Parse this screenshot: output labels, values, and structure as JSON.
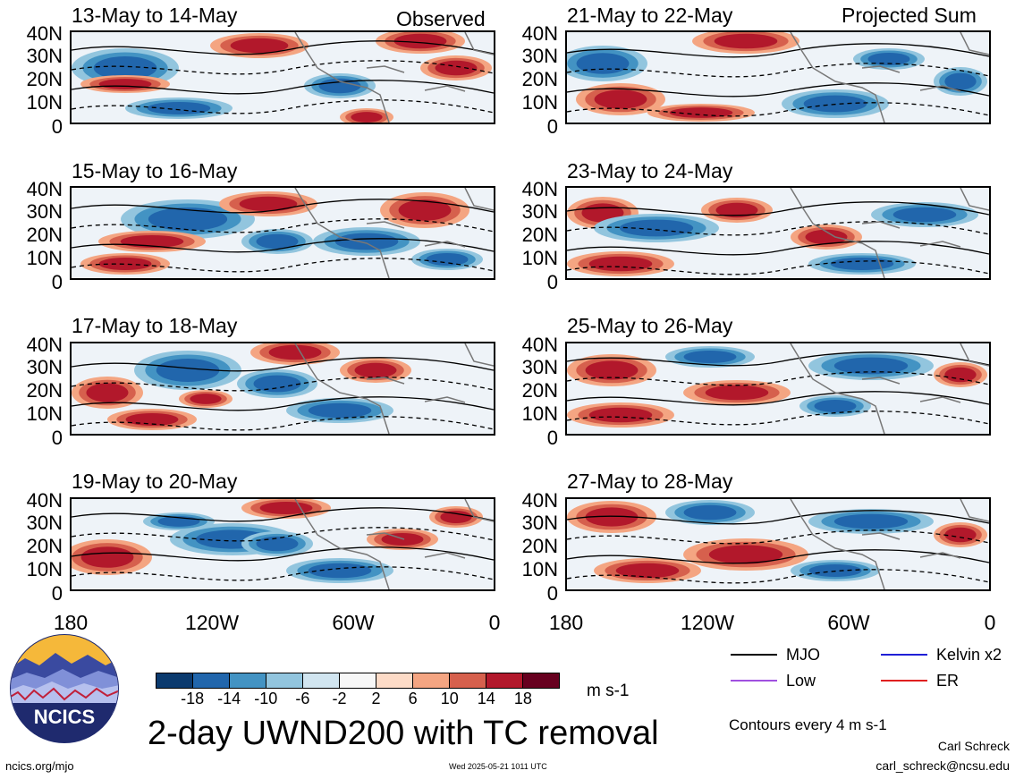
{
  "column_titles": {
    "left": "Observed",
    "right": "Projected Sum"
  },
  "panels": {
    "left": [
      {
        "title": "13-May to 14-May"
      },
      {
        "title": "15-May to 16-May"
      },
      {
        "title": "17-May to 18-May"
      },
      {
        "title": "19-May to 20-May"
      }
    ],
    "right": [
      {
        "title": "21-May to 22-May"
      },
      {
        "title": "23-May to 24-May"
      },
      {
        "title": "25-May to 26-May"
      },
      {
        "title": "27-May to 28-May"
      }
    ]
  },
  "lat_labels": [
    "40N",
    "30N",
    "20N",
    "10N",
    "0"
  ],
  "lon_labels": [
    "180",
    "120W",
    "60W",
    "0"
  ],
  "colorbar": {
    "labels": [
      "-18",
      "-14",
      "-10",
      "-6",
      "-2",
      "2",
      "6",
      "10",
      "14",
      "18"
    ],
    "colors": [
      "#0b3a6e",
      "#2166ac",
      "#4393c3",
      "#92c5de",
      "#d1e5f0",
      "#f7f7f7",
      "#fddbc7",
      "#f4a582",
      "#d6604d",
      "#b2182b",
      "#67001f"
    ],
    "units": "m s-1"
  },
  "main_title": "2-day UWND200 with TC removal",
  "legend": [
    {
      "label": "MJO",
      "color": "#000000"
    },
    {
      "label": "Kelvin x2",
      "color": "#1f1fd6"
    },
    {
      "label": "Low",
      "color": "#a050e0"
    },
    {
      "label": "ER",
      "color": "#e02020"
    }
  ],
  "contours_note": "Contours every 4 m s-1",
  "author": "Carl Schreck",
  "email": "carl_schreck@ncsu.edu",
  "site": "ncics.org/mjo",
  "timestamp": "Wed 2025-05-21 1011 UTC",
  "logo_text": "NCICS"
}
